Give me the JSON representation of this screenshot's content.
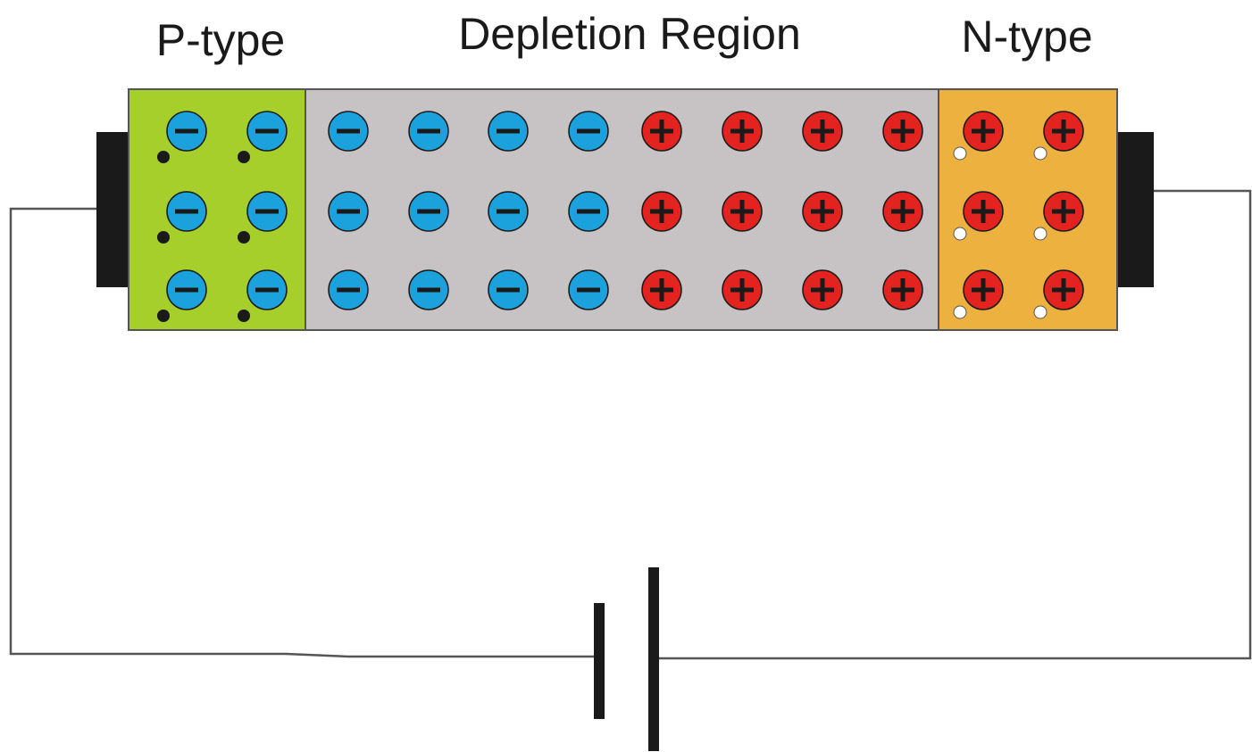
{
  "labels": {
    "p_type": "P-type",
    "depletion": "Depletion Region",
    "n_type": "N-type"
  },
  "colors": {
    "p_region": "#a6cf2c",
    "depletion_region": "#c7c2c3",
    "n_region": "#ecb13f",
    "negative_ion": "#1ba1dc",
    "positive_ion": "#e2231f",
    "electrode": "#1a1a1a",
    "wire": "#555555"
  },
  "regions": {
    "p_type": {
      "rows": 3,
      "cols": 2,
      "ion": "negative",
      "carrier": "black-dot"
    },
    "depletion": {
      "rows": 3,
      "negative_cols": 4,
      "positive_cols": 4
    },
    "n_type": {
      "rows": 3,
      "cols": 2,
      "ion": "positive",
      "carrier": "white-dot"
    }
  },
  "battery_symbol": "battery-icon"
}
